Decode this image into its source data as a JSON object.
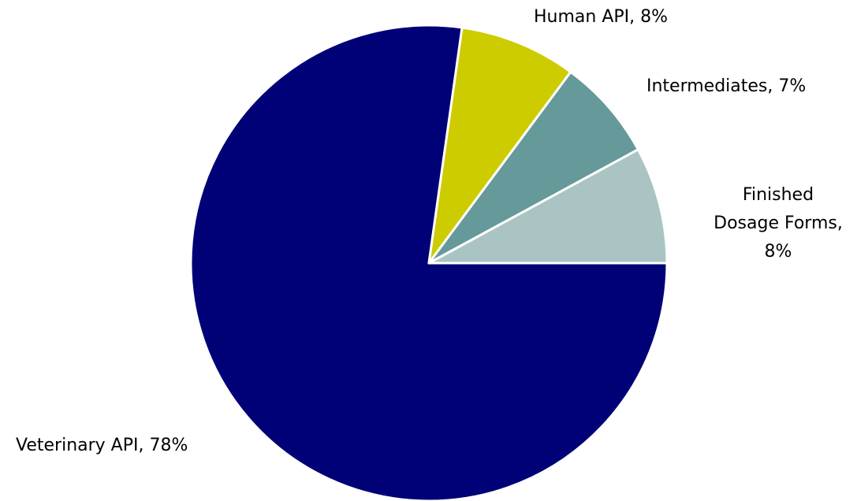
{
  "chart_data": {
    "type": "pie",
    "categories": [
      "Veterinary API",
      "Human API",
      "Intermediates",
      "Finished Dosage Forms"
    ],
    "values": [
      78,
      8,
      7,
      8
    ],
    "value_labels": [
      "Veterinary API, 78%",
      "Human API, 8%",
      "Intermediates, 7%",
      [
        "Finished",
        "Dosage Forms,",
        "8%"
      ]
    ],
    "colors": [
      "#000077",
      "#cccc00",
      "#669999",
      "#aac4c4"
    ]
  }
}
